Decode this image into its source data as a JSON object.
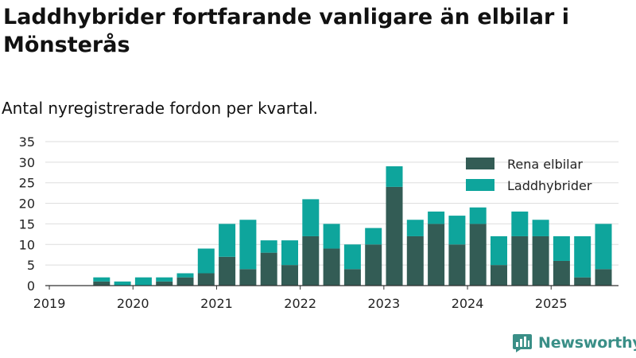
{
  "title": "Laddhybrider fortfarande vanligare än elbilar i Mönsterås",
  "subtitle": "Antal nyregistrerade fordon per kvartal.",
  "brand": "Newsworthy",
  "chart_data": {
    "type": "bar",
    "stacked": true,
    "categories": [
      "2019-Q1",
      "2019-Q2",
      "2019-Q3",
      "2019-Q4",
      "2020-Q1",
      "2020-Q2",
      "2020-Q3",
      "2020-Q4",
      "2021-Q1",
      "2021-Q2",
      "2021-Q3",
      "2021-Q4",
      "2022-Q1",
      "2022-Q2",
      "2022-Q3",
      "2022-Q4",
      "2023-Q1",
      "2023-Q2",
      "2023-Q3",
      "2023-Q4",
      "2024-Q1",
      "2024-Q2",
      "2024-Q3",
      "2024-Q4",
      "2025-Q1",
      "2025-Q2"
    ],
    "series": [
      {
        "name": "Rena elbilar",
        "color": "#335c55",
        "values": [
          0,
          1,
          0,
          0,
          1,
          2,
          3,
          7,
          4,
          8,
          5,
          12,
          9,
          4,
          10,
          24,
          12,
          15,
          10,
          15,
          5,
          12,
          12,
          6,
          2,
          4
        ]
      },
      {
        "name": "Laddhybrider",
        "color": "#0ea59c",
        "values": [
          0,
          1,
          1,
          2,
          1,
          1,
          6,
          8,
          12,
          3,
          6,
          9,
          6,
          6,
          4,
          5,
          4,
          3,
          7,
          4,
          7,
          6,
          4,
          6,
          10,
          11
        ]
      }
    ],
    "x_tick_labels": [
      "2019",
      "2020",
      "2021",
      "2022",
      "2023",
      "2024",
      "2025"
    ],
    "y_ticks": [
      0,
      5,
      10,
      15,
      20,
      25,
      30,
      35
    ],
    "ylim": [
      0,
      35
    ],
    "grid": true,
    "legend_position": "top-right"
  }
}
